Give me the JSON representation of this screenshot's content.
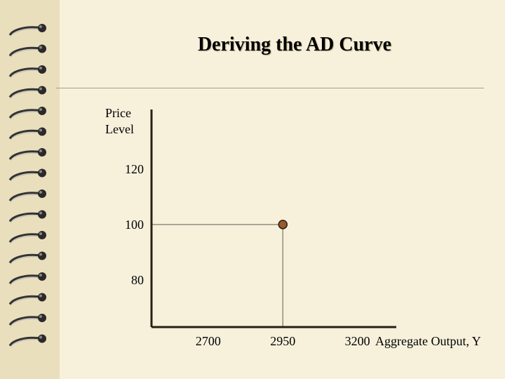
{
  "slide": {
    "title": "Deriving the AD Curve",
    "colors": {
      "background": "#f7f1dc",
      "binding": "#e9dfbd",
      "ring": "#222222",
      "axis": "#2a1f14",
      "point": "#9a5a2c",
      "guide": "#8f8f80"
    }
  },
  "chart_data": {
    "type": "scatter",
    "ylabel_lines": [
      "Price",
      "Level"
    ],
    "xlabel": "Aggregate Output, Y",
    "x_ticks": [
      2700,
      2950,
      3200
    ],
    "y_ticks": [
      80,
      100,
      120
    ],
    "xlim": [
      2510,
      3330
    ],
    "ylim": [
      63,
      143
    ],
    "points": [
      {
        "x": 2950,
        "y": 100
      }
    ],
    "grid": false,
    "legend": "none"
  }
}
